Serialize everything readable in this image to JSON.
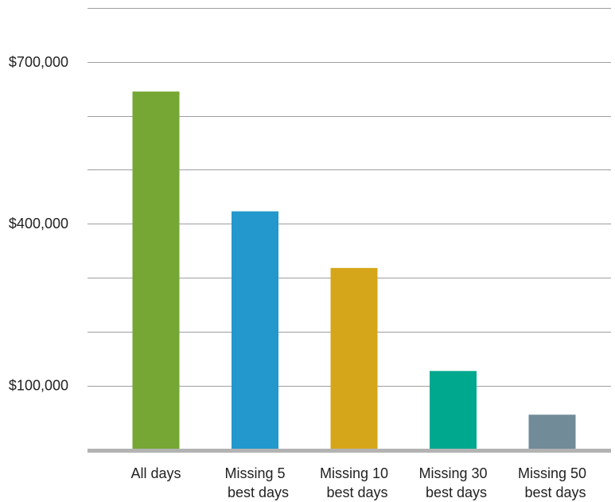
{
  "chart_data": {
    "type": "bar",
    "title": "",
    "xlabel": "",
    "ylabel": "",
    "categories": [
      [
        "All days"
      ],
      [
        "Missing 5",
        "best days"
      ],
      [
        "Missing 10",
        "best days"
      ],
      [
        "Missing 30",
        "best days"
      ],
      [
        "Missing 50",
        "best days"
      ]
    ],
    "values": [
      645000,
      423000,
      318000,
      127000,
      46000
    ],
    "colors": [
      "#76a633",
      "#2398cd",
      "#d6a61a",
      "#00a88e",
      "#718b98"
    ],
    "ylim": [
      -20000,
      800000
    ],
    "gridlines": [
      100000,
      200000,
      300000,
      400000,
      500000,
      600000,
      700000,
      800000
    ],
    "tick_values": [
      100000,
      400000,
      700000
    ],
    "tick_labels": [
      "$100,000",
      "$400,000",
      "$700,000"
    ],
    "grid": true,
    "legend": "none"
  }
}
